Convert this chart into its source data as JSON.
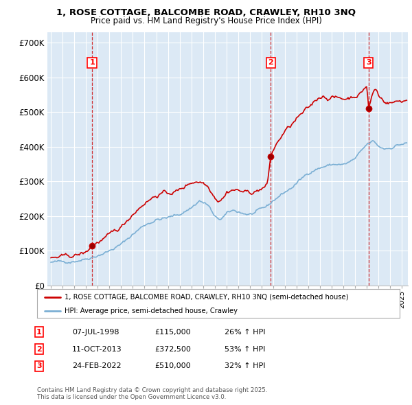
{
  "title1": "1, ROSE COTTAGE, BALCOMBE ROAD, CRAWLEY, RH10 3NQ",
  "title2": "Price paid vs. HM Land Registry's House Price Index (HPI)",
  "red_label": "1, ROSE COTTAGE, BALCOMBE ROAD, CRAWLEY, RH10 3NQ (semi-detached house)",
  "blue_label": "HPI: Average price, semi-detached house, Crawley",
  "sale_points": [
    {
      "num": 1,
      "date_decimal": 1998.52,
      "price": 115000,
      "label": "07-JUL-1998",
      "price_str": "£115,000",
      "hpi_str": "26% ↑ HPI"
    },
    {
      "num": 2,
      "date_decimal": 2013.78,
      "price": 372500,
      "label": "11-OCT-2013",
      "price_str": "£372,500",
      "hpi_str": "53% ↑ HPI"
    },
    {
      "num": 3,
      "date_decimal": 2022.15,
      "price": 510000,
      "label": "24-FEB-2022",
      "price_str": "£510,000",
      "hpi_str": "32% ↑ HPI"
    }
  ],
  "red_color": "#cc0000",
  "blue_color": "#7bafd4",
  "dashed_color": "#cc0000",
  "footer": "Contains HM Land Registry data © Crown copyright and database right 2025.\nThis data is licensed under the Open Government Licence v3.0.",
  "ylim": [
    0,
    730000
  ],
  "xlim_start": 1994.7,
  "xlim_end": 2025.5,
  "yticks": [
    0,
    100000,
    200000,
    300000,
    400000,
    500000,
    600000,
    700000
  ],
  "ytick_labels": [
    "£0",
    "£100K",
    "£200K",
    "£300K",
    "£400K",
    "£500K",
    "£600K",
    "£700K"
  ],
  "background_color": "#dce9f5",
  "plot_bg_color": "#dce9f5"
}
